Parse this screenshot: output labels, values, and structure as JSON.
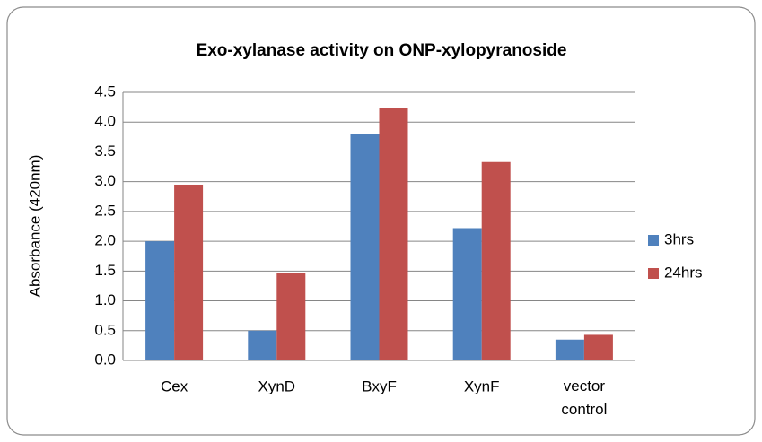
{
  "chart_data": {
    "type": "bar",
    "title": "Exo-xylanase activity on ONP-xylopyranoside",
    "y_label": "Absorbance (420nm)",
    "categories": [
      "Cex",
      "XynD",
      "BxyF",
      "XynF",
      "vector control"
    ],
    "series": [
      {
        "name": "3hrs",
        "color": "#4f81bd",
        "values": [
          2.0,
          0.5,
          3.8,
          2.22,
          0.35
        ]
      },
      {
        "name": "24hrs",
        "color": "#c0504d",
        "values": [
          2.95,
          1.47,
          4.23,
          3.33,
          0.43
        ]
      }
    ],
    "ylim": [
      0,
      4.5
    ],
    "yticks": [
      {
        "value": 0,
        "label": "0.0"
      },
      0.5,
      {
        "value": 1,
        "label": "1.0"
      },
      1.5,
      {
        "value": 2,
        "label": "2.0"
      },
      2.5,
      {
        "value": 3,
        "label": "3.0"
      },
      3.5,
      {
        "value": 4,
        "label": "4.0"
      },
      4.5
    ],
    "grid": true,
    "legend": "right"
  }
}
